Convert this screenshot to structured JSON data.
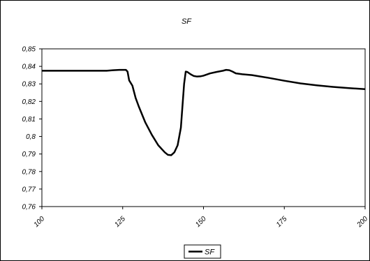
{
  "chart_data": {
    "type": "line",
    "title": "SF",
    "xlabel": "",
    "ylabel": "",
    "xlim": [
      100,
      200
    ],
    "ylim": [
      0.76,
      0.85
    ],
    "x_ticks": [
      100,
      125,
      150,
      175,
      200
    ],
    "x_tick_labels": [
      "100",
      "125",
      "150",
      "175",
      "200"
    ],
    "y_ticks": [
      0.76,
      0.77,
      0.78,
      0.79,
      0.8,
      0.81,
      0.82,
      0.83,
      0.84,
      0.85
    ],
    "y_tick_labels": [
      "0,76",
      "0,77",
      "0,78",
      "0,79",
      "0,8",
      "0,81",
      "0,82",
      "0,83",
      "0,84",
      "0,85"
    ],
    "grid": false,
    "legend_position": "bottom",
    "series": [
      {
        "name": "SF",
        "color": "#000000",
        "x": [
          100,
          110,
          120,
          122,
          124,
          126,
          126.5,
          127,
          128,
          129,
          130,
          132,
          134,
          136,
          138,
          139,
          140,
          141,
          142,
          143,
          144,
          144.5,
          145,
          146,
          147,
          148,
          149,
          150,
          152,
          154,
          156,
          157,
          158,
          159,
          160,
          162,
          165,
          170,
          175,
          180,
          185,
          190,
          195,
          200
        ],
        "values": [
          0.8375,
          0.8375,
          0.8375,
          0.8378,
          0.838,
          0.838,
          0.837,
          0.832,
          0.829,
          0.822,
          0.817,
          0.808,
          0.801,
          0.795,
          0.791,
          0.7895,
          0.7893,
          0.791,
          0.795,
          0.805,
          0.83,
          0.837,
          0.8368,
          0.8355,
          0.8345,
          0.8342,
          0.8343,
          0.8347,
          0.836,
          0.8368,
          0.8375,
          0.838,
          0.8378,
          0.837,
          0.836,
          0.8355,
          0.835,
          0.8335,
          0.8318,
          0.8303,
          0.8292,
          0.8283,
          0.8276,
          0.827
        ]
      }
    ]
  }
}
